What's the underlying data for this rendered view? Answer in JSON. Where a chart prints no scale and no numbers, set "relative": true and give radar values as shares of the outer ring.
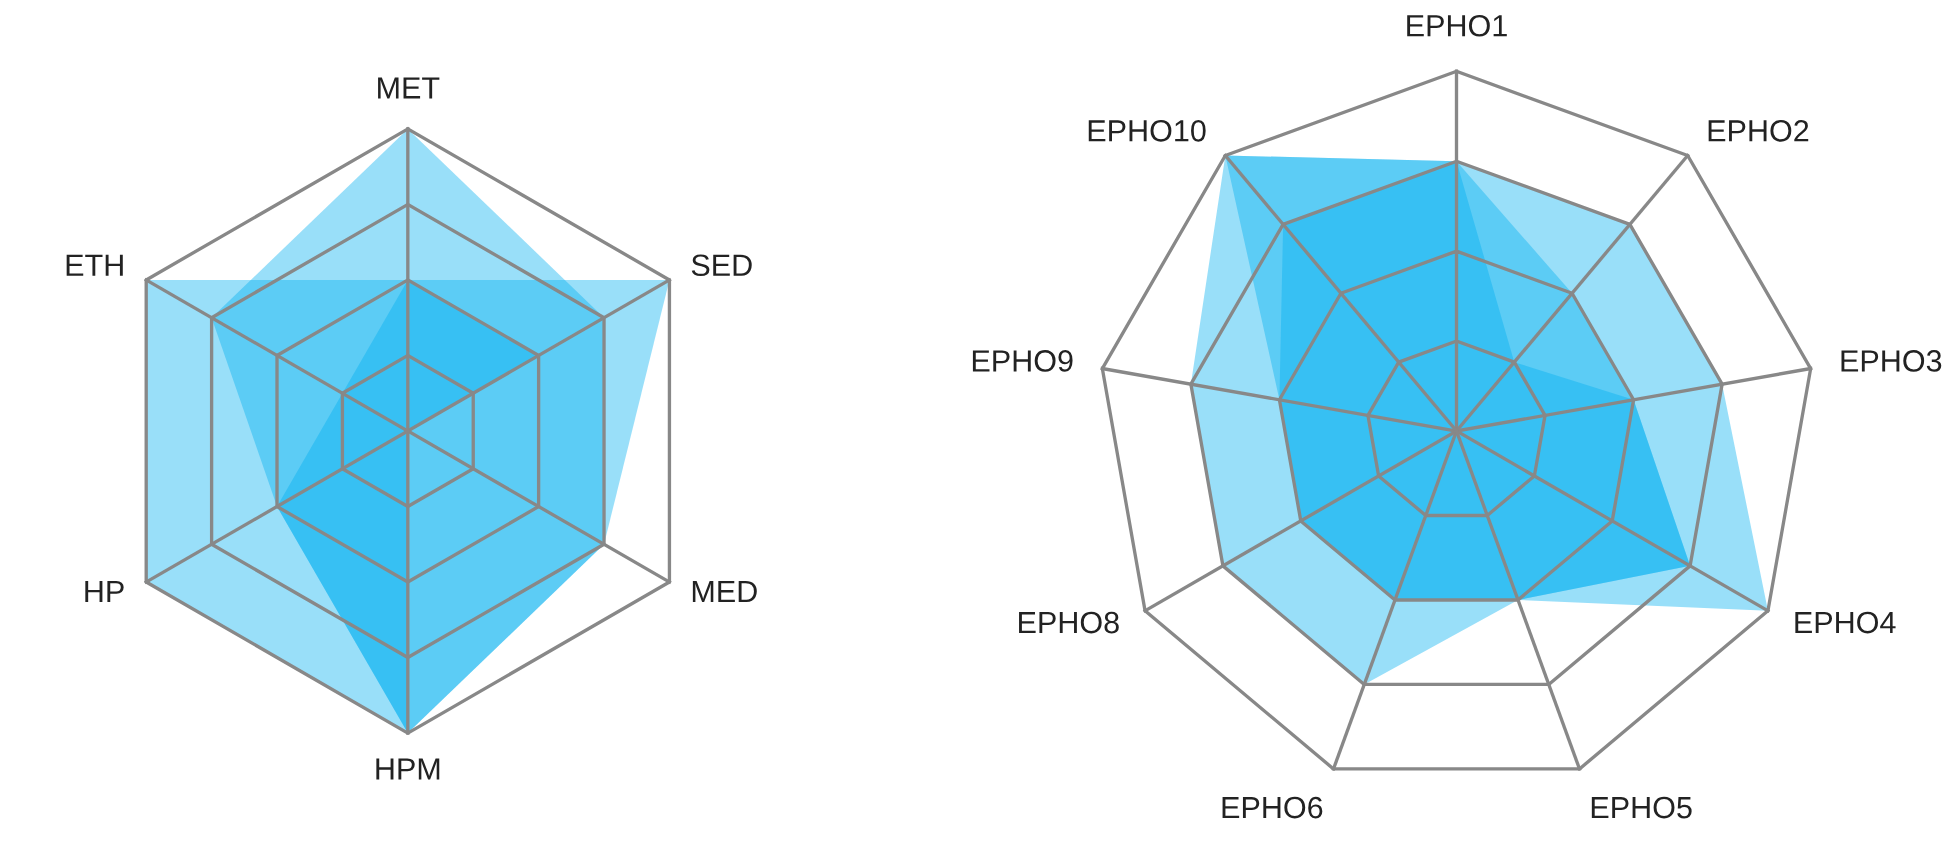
{
  "chart_data": [
    {
      "type": "radar",
      "relative": true,
      "grid": true,
      "categories": [
        "MET",
        "SED",
        "MED",
        "HPM",
        "HP",
        "ETH"
      ],
      "series": [
        {
          "color": "#00b0f0",
          "values": [
            1,
            0.75,
            0.75,
            1,
            0.5,
            0.75
          ]
        },
        {
          "color": "#00b0f0",
          "values": [
            0.5,
            1,
            0.75,
            1,
            1,
            1
          ]
        },
        {
          "color": "#00b0f0",
          "values": [
            0.5,
            0.5,
            0,
            1,
            0.5,
            0.25
          ]
        }
      ]
    },
    {
      "type": "radar",
      "relative": true,
      "grid": true,
      "categories": [
        "EPHO1",
        "EPHO2",
        "EPHO3",
        "EPHO4",
        "EPHO5",
        "EPHO6",
        "EPHO8",
        "EPHO9",
        "EPHO10"
      ],
      "series": [
        {
          "color": "#00b0f0",
          "values": [
            0.75,
            0.75,
            0.75,
            1,
            0.5,
            0.75,
            0.75,
            0.75,
            1
          ]
        },
        {
          "color": "#00b0f0",
          "values": [
            0.75,
            0.5,
            0.5,
            0.75,
            0.5,
            0.5,
            0.5,
            0.5,
            0.75
          ]
        },
        {
          "color": "#00b0f0",
          "values": [
            0.75,
            0.25,
            0.5,
            0.75,
            0.5,
            0.5,
            0.5,
            0.5,
            1
          ]
        }
      ]
    }
  ]
}
